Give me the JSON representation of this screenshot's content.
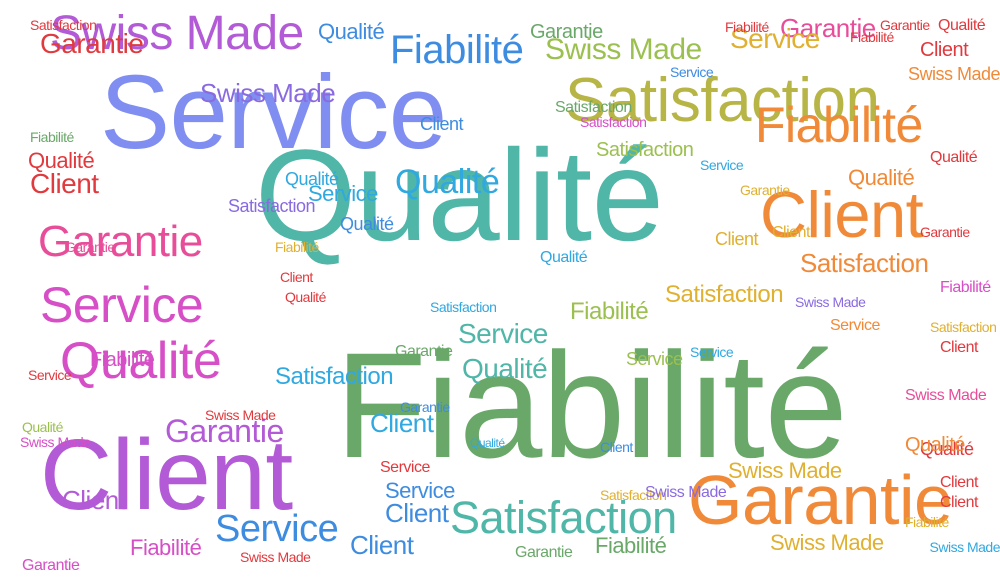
{
  "palette": {
    "red": "#e03a3e",
    "pink": "#e84d9a",
    "magenta": "#d64fc6",
    "violet": "#b35ad6",
    "purple": "#8a6ae0",
    "indigo": "#7f8ef0",
    "blue": "#3e8ce0",
    "sky": "#30a8e0",
    "teal": "#4fb6a8",
    "green": "#6aa86a",
    "lime": "#9cc050",
    "olive": "#b7b545",
    "gold": "#e0b030",
    "orange": "#f08a38",
    "coral": "#ef5b3a"
  },
  "words": [
    {
      "text": "Qualité",
      "color": "teal"
    },
    {
      "text": "Fiabilité",
      "color": "green"
    },
    {
      "text": "Service",
      "color": "indigo"
    },
    {
      "text": "Client",
      "color": "violet"
    },
    {
      "text": "Satisfaction",
      "color": "olive"
    },
    {
      "text": "Client",
      "color": "orange"
    },
    {
      "text": "Garantie",
      "color": "orange"
    },
    {
      "text": "Swiss Made",
      "color": "violet"
    },
    {
      "text": "Fiabilité",
      "color": "blue"
    },
    {
      "text": "Fiabilité",
      "color": "orange"
    },
    {
      "text": "Garantie",
      "color": "pink"
    },
    {
      "text": "Service",
      "color": "magenta"
    },
    {
      "text": "Qualité",
      "color": "magenta"
    },
    {
      "text": "Satisfaction",
      "color": "teal"
    },
    {
      "text": "Swiss Made",
      "color": "lime"
    },
    {
      "text": "Garantie",
      "color": "violet"
    },
    {
      "text": "Service",
      "color": "blue"
    },
    {
      "text": "Qualité",
      "color": "sky"
    },
    {
      "text": "Service",
      "color": "teal"
    },
    {
      "text": "Qualité",
      "color": "teal"
    },
    {
      "text": "Satisfaction",
      "color": "sky"
    },
    {
      "text": "Satisfaction",
      "color": "orange"
    },
    {
      "text": "Swiss Made",
      "color": "purple"
    },
    {
      "text": "Swiss Made",
      "color": "gold"
    },
    {
      "text": "Garantie",
      "color": "red"
    },
    {
      "text": "Garantie",
      "color": "pink"
    },
    {
      "text": "Service",
      "color": "gold"
    },
    {
      "text": "Service",
      "color": "sky"
    },
    {
      "text": "Qualité",
      "color": "orange"
    },
    {
      "text": "Qualité",
      "color": "blue"
    },
    {
      "text": "Qualité",
      "color": "red"
    },
    {
      "text": "Client",
      "color": "red"
    },
    {
      "text": "Client",
      "color": "sky"
    },
    {
      "text": "Client",
      "color": "blue"
    },
    {
      "text": "Service",
      "color": "blue"
    },
    {
      "text": "Fiabilité",
      "color": "lime"
    },
    {
      "text": "Fiabilité",
      "color": "magenta"
    },
    {
      "text": "Fiabilité",
      "color": "green"
    },
    {
      "text": "Fiabilité",
      "color": "magenta"
    },
    {
      "text": "Fiabilité",
      "color": "green"
    },
    {
      "text": "Satisfaction",
      "color": "gold"
    },
    {
      "text": "Satisfaction",
      "color": "lime"
    },
    {
      "text": "Satisfaction",
      "color": "purple"
    },
    {
      "text": "Garantie",
      "color": "green"
    },
    {
      "text": "Garantie",
      "color": "gold"
    },
    {
      "text": "Swiss Made",
      "color": "purple"
    },
    {
      "text": "Swiss Made",
      "color": "gold"
    },
    {
      "text": "Qualité",
      "color": "red"
    },
    {
      "text": "Qualité",
      "color": "blue"
    },
    {
      "text": "Qualité",
      "color": "orange"
    },
    {
      "text": "Qualité",
      "color": "red"
    },
    {
      "text": "Qualité",
      "color": "red"
    },
    {
      "text": "Client",
      "color": "violet"
    },
    {
      "text": "Client",
      "color": "red"
    },
    {
      "text": "Client",
      "color": "red"
    },
    {
      "text": "Client",
      "color": "blue"
    },
    {
      "text": "Client",
      "color": "red"
    },
    {
      "text": "Client",
      "color": "red"
    },
    {
      "text": "Client",
      "color": "gold"
    },
    {
      "text": "Client",
      "color": "gold"
    },
    {
      "text": "Client",
      "color": "blue"
    },
    {
      "text": "Service",
      "color": "lime"
    },
    {
      "text": "Service",
      "color": "red"
    },
    {
      "text": "Service",
      "color": "orange"
    },
    {
      "text": "Service",
      "color": "blue"
    },
    {
      "text": "Service",
      "color": "sky"
    },
    {
      "text": "Service",
      "color": "sky"
    },
    {
      "text": "Satisfaction",
      "color": "red"
    },
    {
      "text": "Satisfaction",
      "color": "green"
    },
    {
      "text": "Satisfaction",
      "color": "magenta"
    },
    {
      "text": "Satisfaction",
      "color": "gold"
    },
    {
      "text": "Satisfaction",
      "color": "gold"
    },
    {
      "text": "Garantie",
      "color": "red"
    },
    {
      "text": "Garantie",
      "color": "pink"
    },
    {
      "text": "Garantie",
      "color": "green"
    },
    {
      "text": "Garantie",
      "color": "red"
    },
    {
      "text": "Garantie",
      "color": "green"
    },
    {
      "text": "Garantie",
      "color": "magenta"
    },
    {
      "text": "Swiss Made",
      "color": "red"
    },
    {
      "text": "Swiss Made",
      "color": "pink"
    },
    {
      "text": "Swiss Made",
      "color": "purple"
    },
    {
      "text": "Swiss Made",
      "color": "orange"
    },
    {
      "text": "Swiss Made",
      "color": "red"
    },
    {
      "text": "Swiss Made",
      "color": "magenta"
    },
    {
      "text": "Fiabilité",
      "color": "red"
    },
    {
      "text": "Fiabilité",
      "color": "gold"
    },
    {
      "text": "Fiabilité",
      "color": "magenta"
    },
    {
      "text": "Fiabilité",
      "color": "red"
    },
    {
      "text": "Fiabilité",
      "color": "gold"
    },
    {
      "text": "Qualité",
      "color": "sky"
    },
    {
      "text": "Qualité",
      "color": "lime"
    },
    {
      "text": "Qualité",
      "color": "red"
    },
    {
      "text": "Qualité",
      "color": "sky"
    },
    {
      "text": "Qualité",
      "color": "sky"
    },
    {
      "text": "Client",
      "color": "blue"
    },
    {
      "text": "Client",
      "color": "red"
    },
    {
      "text": "Service",
      "color": "red"
    },
    {
      "text": "Satisfaction",
      "color": "sky"
    },
    {
      "text": "Garantie",
      "color": "blue"
    },
    {
      "text": "Swiss Made",
      "color": "sky"
    },
    {
      "text": "Fiabilité",
      "color": "red"
    }
  ]
}
